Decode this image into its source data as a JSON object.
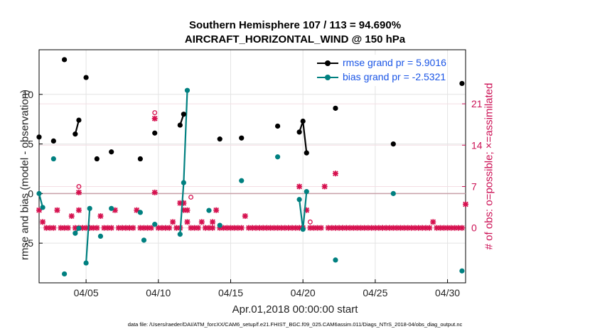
{
  "title_line1": "Southern Hemisphere 107 / 113 = 94.690%",
  "title_line2": "AIRCRAFT_HORIZONTAL_WIND @ 150 hPa",
  "xlabel": "Apr.01,2018 00:00:00 start",
  "ylabel_left": "rmse and bias (model - observation)",
  "ylabel_right": "# of obs: o=possible; ×=assimilated",
  "data_file_note": "data file: /Users/raeder/DAI/ATM_forcXX/CAM6_setup/f.e21.FHIST_BGC.f09_025.CAM6assim.011/Diags_NTrS_2018-04/obs_diag_output.nc",
  "colors": {
    "rmse": "#000000",
    "bias": "#008080",
    "obs": "#d6114f",
    "legend_text": "#1a55e6",
    "right_axis": "#cc1155",
    "zero_line": "#c8a0a8"
  },
  "chart_data": {
    "type": "line",
    "x_unit": "days since Apr.01,2018 00:00 (6-hourly)",
    "xlim": [
      0.75,
      30.25
    ],
    "xticks": [
      4,
      9,
      14,
      19,
      24,
      29
    ],
    "xtick_labels": [
      "04/05",
      "04/10",
      "04/15",
      "04/20",
      "04/25",
      "04/30"
    ],
    "ylim_left": [
      -9,
      14.5
    ],
    "yticks_left": [
      -5,
      0,
      5,
      10
    ],
    "ylim_right": [
      -9.3,
      30.15
    ],
    "yticks_right": [
      0,
      7,
      14,
      21
    ],
    "grid": true,
    "legend_position": "top-right",
    "series": [
      {
        "name": "rmse grand pr = 5.9016",
        "axis": "left",
        "points": [
          [
            0.75,
            5.7
          ],
          [
            1.75,
            5.3
          ],
          [
            2.5,
            13.5
          ],
          [
            3.25,
            6.0
          ],
          [
            3.5,
            7.4
          ],
          [
            4.0,
            11.7
          ],
          [
            4.75,
            3.5
          ],
          [
            5.75,
            4.2
          ],
          [
            7.75,
            3.5
          ],
          [
            8.75,
            6.1
          ],
          [
            10.5,
            6.9
          ],
          [
            10.75,
            8.0
          ],
          [
            13.25,
            5.5
          ],
          [
            14.75,
            5.6
          ],
          [
            17.25,
            6.8
          ],
          [
            18.75,
            6.2
          ],
          [
            19.0,
            7.3
          ],
          [
            19.25,
            4.1
          ],
          [
            21.25,
            8.6
          ],
          [
            25.25,
            5.0
          ],
          [
            30.0,
            11.1
          ]
        ],
        "segments": [
          [
            3.25,
            3.5
          ],
          [
            10.5,
            10.75
          ],
          [
            18.75,
            19.25
          ]
        ]
      },
      {
        "name": "bias grand pr = -2.5321",
        "axis": "left",
        "points": [
          [
            0.75,
            0.0
          ],
          [
            1.0,
            -1.4
          ],
          [
            1.75,
            3.5
          ],
          [
            2.5,
            -8.1
          ],
          [
            3.25,
            -4.0
          ],
          [
            3.5,
            -3.5
          ],
          [
            4.0,
            -7.0
          ],
          [
            4.25,
            -1.5
          ],
          [
            5.0,
            -4.3
          ],
          [
            5.75,
            -1.5
          ],
          [
            7.75,
            -1.9
          ],
          [
            8.0,
            -4.7
          ],
          [
            8.75,
            -3.1
          ],
          [
            10.5,
            -4.1
          ],
          [
            10.75,
            1.1
          ],
          [
            11.0,
            10.4
          ],
          [
            12.5,
            -1.7
          ],
          [
            13.25,
            -3.2
          ],
          [
            14.75,
            1.3
          ],
          [
            17.25,
            3.7
          ],
          [
            18.75,
            -0.6
          ],
          [
            19.0,
            -3.6
          ],
          [
            19.25,
            0.2
          ],
          [
            21.25,
            -6.7
          ],
          [
            25.25,
            0.0
          ],
          [
            30.0,
            -7.8
          ]
        ],
        "segments": [
          [
            0.75,
            1.0
          ],
          [
            3.25,
            3.5
          ],
          [
            4.0,
            4.25
          ],
          [
            10.5,
            11.0
          ],
          [
            18.75,
            19.25
          ]
        ]
      },
      {
        "name": "# obs possible",
        "axis": "right",
        "marker": "o",
        "values": [
          3,
          1,
          0,
          0,
          0,
          3,
          0,
          0,
          0,
          2,
          0,
          0,
          0,
          0,
          0,
          0,
          0,
          2,
          0,
          0,
          0,
          3,
          0,
          0,
          0,
          0,
          0,
          3,
          0,
          0,
          0,
          0,
          6,
          0,
          0,
          0,
          0,
          1,
          0,
          0,
          3,
          3,
          0,
          0,
          0,
          1,
          0,
          0,
          0,
          3,
          0,
          0,
          0,
          0,
          0,
          0,
          0,
          2,
          0,
          0,
          0,
          0,
          0,
          0,
          0,
          0,
          0,
          0,
          0,
          0,
          0,
          0,
          0,
          0,
          3,
          0,
          0,
          0,
          0,
          7,
          0,
          0,
          0,
          0,
          0,
          0,
          0,
          0,
          0,
          0,
          0,
          0,
          0,
          0,
          0,
          0,
          0,
          0,
          0,
          0,
          0,
          0,
          0,
          0,
          0,
          0,
          0,
          0,
          0,
          1,
          0,
          0,
          0,
          0,
          0,
          0,
          0,
          0,
          4
        ],
        "extra_markers": [
          [
            8.75,
            19.5
          ],
          [
            11.25,
            5.2
          ],
          [
            3.5,
            7.0
          ],
          [
            19.5,
            1.0
          ]
        ]
      },
      {
        "name": "# obs assimilated",
        "axis": "right",
        "marker": "x",
        "values": [
          3,
          1,
          0,
          0,
          0,
          3,
          0,
          0,
          0,
          2,
          0,
          0,
          0,
          0,
          0,
          0,
          0,
          2,
          0,
          0,
          0,
          3,
          0,
          0,
          0,
          0,
          0,
          3,
          0,
          0,
          0,
          0,
          6,
          0,
          0,
          0,
          0,
          1,
          0,
          0,
          3,
          3,
          0,
          0,
          0,
          1,
          0,
          0,
          0,
          3,
          0,
          0,
          0,
          0,
          0,
          0,
          0,
          2,
          0,
          0,
          0,
          0,
          0,
          0,
          0,
          0,
          0,
          0,
          0,
          0,
          0,
          0,
          0,
          0,
          3,
          0,
          0,
          0,
          0,
          7,
          0,
          0,
          0,
          0,
          0,
          0,
          0,
          0,
          0,
          0,
          0,
          0,
          0,
          0,
          0,
          0,
          0,
          0,
          0,
          0,
          0,
          0,
          0,
          0,
          0,
          0,
          0,
          0,
          0,
          1,
          0,
          0,
          0,
          0,
          0,
          0,
          0,
          0,
          4
        ],
        "extra_markers": [
          [
            8.75,
            18.5
          ],
          [
            10.5,
            4.2
          ],
          [
            10.75,
            4.2
          ],
          [
            11.0,
            1.0
          ],
          [
            3.5,
            6.0
          ],
          [
            3.5,
            3.0
          ],
          [
            12.75,
            1.0
          ],
          [
            18.75,
            7.0
          ],
          [
            21.25,
            9.2
          ],
          [
            4.25,
            0.0
          ]
        ]
      }
    ]
  }
}
